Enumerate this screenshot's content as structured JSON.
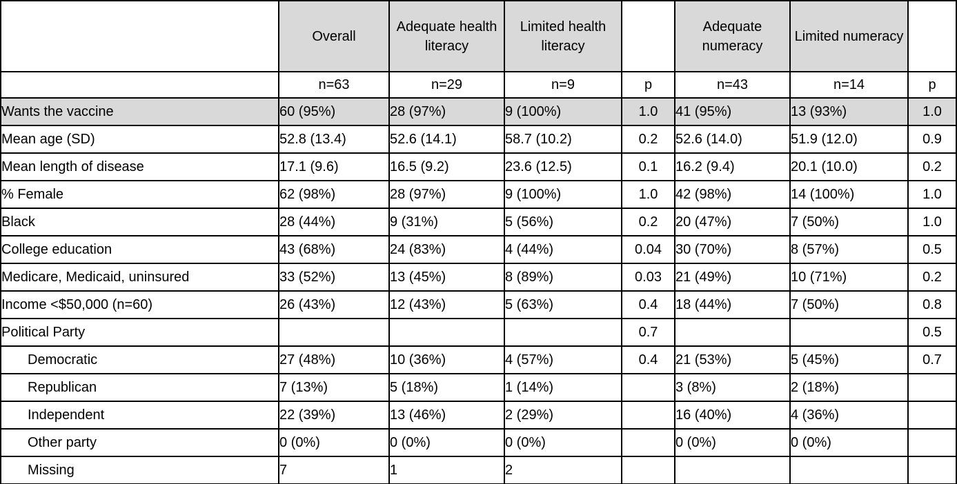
{
  "table": {
    "shading_color": "#d9d9d9",
    "columns": [
      {
        "label": "",
        "shaded": false
      },
      {
        "label": "Overall",
        "shaded": true
      },
      {
        "label": "Adequate health literacy",
        "shaded": true
      },
      {
        "label": "Limited health literacy",
        "shaded": true
      },
      {
        "label": "",
        "shaded": false
      },
      {
        "label": "Adequate numeracy",
        "shaded": true
      },
      {
        "label": "Limited numeracy",
        "shaded": true
      },
      {
        "label": "",
        "shaded": false
      }
    ],
    "subheader": [
      "",
      "n=63",
      "n=29",
      "n=9",
      "p",
      "n=43",
      "n=14",
      "p"
    ],
    "rows": [
      {
        "label": "Wants the vaccine",
        "indent": false,
        "label_bold": false,
        "shaded": true,
        "values": [
          "60 (95%)",
          "28 (97%)",
          "9 (100%)",
          "1.0",
          "41 (95%)",
          "13 (93%)",
          "1.0"
        ],
        "bold_values": []
      },
      {
        "label": "Mean age (SD)",
        "indent": false,
        "label_bold": false,
        "shaded": false,
        "values": [
          "52.8 (13.4)",
          "52.6 (14.1)",
          "58.7 (10.2)",
          "0.2",
          "52.6 (14.0)",
          "51.9 (12.0)",
          "0.9"
        ],
        "bold_values": []
      },
      {
        "label": "Mean length of disease",
        "indent": false,
        "label_bold": false,
        "shaded": false,
        "values": [
          "17.1 (9.6)",
          "16.5 (9.2)",
          "23.6 (12.5)",
          "0.1",
          "16.2 (9.4)",
          "20.1 (10.0)",
          "0.2"
        ],
        "bold_values": []
      },
      {
        "label": "% Female",
        "indent": false,
        "label_bold": false,
        "shaded": false,
        "values": [
          "62 (98%)",
          "28 (97%)",
          "9 (100%)",
          "1.0",
          "42 (98%)",
          "14 (100%)",
          "1.0"
        ],
        "bold_values": []
      },
      {
        "label": "Black",
        "indent": false,
        "label_bold": false,
        "shaded": false,
        "values": [
          "28 (44%)",
          "9 (31%)",
          "5 (56%)",
          "0.2",
          "20 (47%)",
          "7 (50%)",
          "1.0"
        ],
        "bold_values": []
      },
      {
        "label": "College education",
        "indent": false,
        "label_bold": true,
        "shaded": false,
        "values": [
          "43 (68%)",
          "24 (83%)",
          "4 (44%)",
          "0.04",
          "30 (70%)",
          "8 (57%)",
          "0.5"
        ],
        "bold_values": [
          1,
          2,
          3
        ]
      },
      {
        "label": "Medicare, Medicaid, uninsured",
        "indent": false,
        "label_bold": true,
        "shaded": false,
        "values": [
          "33 (52%)",
          "13 (45%)",
          "8 (89%)",
          "0.03",
          "21 (49%)",
          "10 (71%)",
          "0.2"
        ],
        "bold_values": [
          1,
          2,
          3
        ]
      },
      {
        "label": "Income <$50,000 (n=60)",
        "indent": false,
        "label_bold": false,
        "shaded": false,
        "values": [
          "26 (43%)",
          "12 (43%)",
          "5 (63%)",
          "0.4",
          "18 (44%)",
          "7 (50%)",
          "0.8"
        ],
        "bold_values": []
      },
      {
        "label": "Political Party",
        "indent": false,
        "label_bold": false,
        "shaded": false,
        "values": [
          "",
          "",
          "",
          "0.7",
          "",
          "",
          "0.5"
        ],
        "bold_values": []
      },
      {
        "label": "Democratic",
        "indent": true,
        "label_bold": false,
        "shaded": false,
        "values": [
          "27 (48%)",
          "10 (36%)",
          "4 (57%)",
          "0.4",
          "21 (53%)",
          "5 (45%)",
          "0.7"
        ],
        "bold_values": []
      },
      {
        "label": "Republican",
        "indent": true,
        "label_bold": false,
        "shaded": false,
        "values": [
          "7 (13%)",
          "5 (18%)",
          "1 (14%)",
          "",
          "3 (8%)",
          "2 (18%)",
          ""
        ],
        "bold_values": []
      },
      {
        "label": "Independent",
        "indent": true,
        "label_bold": false,
        "shaded": false,
        "values": [
          "22 (39%)",
          "13 (46%)",
          "2 (29%)",
          "",
          "16 (40%)",
          "4 (36%)",
          ""
        ],
        "bold_values": []
      },
      {
        "label": "Other party",
        "indent": true,
        "label_bold": false,
        "shaded": false,
        "values": [
          "0 (0%)",
          "0 (0%)",
          "0 (0%)",
          "",
          "0 (0%)",
          "0 (0%)",
          ""
        ],
        "bold_values": []
      },
      {
        "label": "Missing",
        "indent": true,
        "label_bold": false,
        "shaded": false,
        "values": [
          "7",
          "1",
          "2",
          "",
          "",
          "",
          ""
        ],
        "bold_values": []
      }
    ]
  }
}
